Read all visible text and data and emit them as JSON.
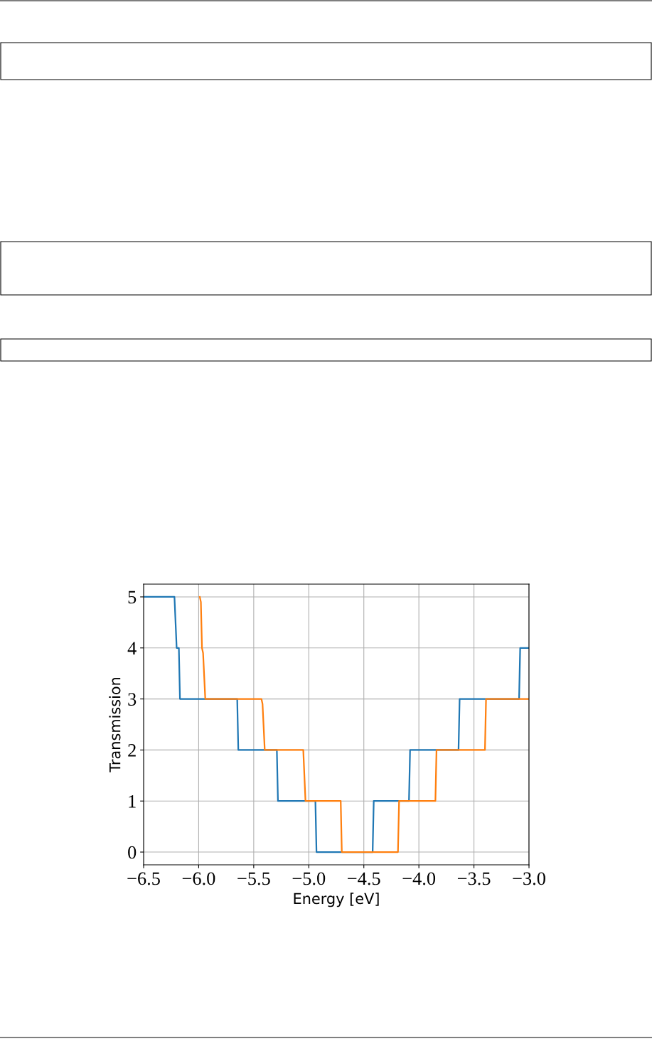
{
  "chart_data": {
    "type": "line",
    "xlabel": "Energy [eV]",
    "ylabel": "Transmission",
    "xlim": [
      -6.5,
      -3.0
    ],
    "xticks": [
      {
        "value": -6.5,
        "label": "−6.5"
      },
      {
        "value": -6.0,
        "label": "−6.0"
      },
      {
        "value": -5.5,
        "label": "−5.5"
      },
      {
        "value": -5.0,
        "label": "−5.0"
      },
      {
        "value": -4.5,
        "label": "−4.5"
      },
      {
        "value": -4.0,
        "label": "−4.0"
      },
      {
        "value": -3.5,
        "label": "−3.5"
      },
      {
        "value": -3.0,
        "label": "−3.0"
      }
    ],
    "ylim": [
      -0.25,
      5.25
    ],
    "yticks": [
      0,
      1,
      2,
      3,
      4,
      5
    ],
    "grid": true,
    "series": [
      {
        "color": "#1f77b4",
        "x": [
          -6.5,
          -6.22,
          -6.2,
          -6.18,
          -6.17,
          -5.65,
          -5.64,
          -5.29,
          -5.28,
          -4.94,
          -4.93,
          -4.42,
          -4.41,
          -4.09,
          -4.08,
          -3.64,
          -3.63,
          -3.09,
          -3.08,
          -3.0
        ],
        "values": [
          5,
          5,
          4,
          4,
          3,
          3,
          2,
          2,
          1,
          1,
          0,
          0,
          1,
          1,
          2,
          2,
          3,
          3,
          4,
          4
        ]
      },
      {
        "color": "#ff7f0e",
        "x": [
          -5.99,
          -5.98,
          -5.97,
          -5.96,
          -5.94,
          -5.43,
          -5.42,
          -5.4,
          -5.05,
          -5.03,
          -4.71,
          -4.7,
          -4.19,
          -4.18,
          -3.85,
          -3.84,
          -3.4,
          -3.39,
          -3.0
        ],
        "values": [
          5,
          4.9,
          4,
          3.9,
          3,
          3,
          2.9,
          2,
          2,
          1,
          1,
          0,
          0,
          1,
          1,
          2,
          2,
          3,
          3
        ]
      }
    ]
  }
}
